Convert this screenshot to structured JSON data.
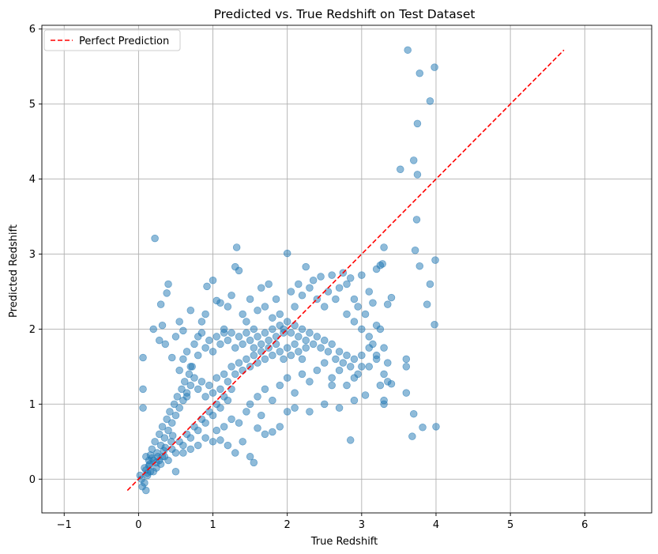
{
  "chart_data": {
    "type": "scatter",
    "title": "Predicted vs. True Redshift on Test Dataset",
    "xlabel": "True Redshift",
    "ylabel": "Predicted Redshift",
    "xlim": [
      -1.3,
      6.9
    ],
    "ylim": [
      -0.45,
      6.05
    ],
    "xticks": [
      -1,
      0,
      1,
      2,
      3,
      4,
      5,
      6
    ],
    "yticks": [
      0,
      1,
      2,
      3,
      4,
      5,
      6
    ],
    "grid": true,
    "legend": {
      "placement": "top-left",
      "entries": [
        "Perfect Prediction"
      ]
    },
    "colors": {
      "points": "#1f77b4",
      "reference_line": "#ff0000"
    },
    "reference_line": {
      "name": "Perfect Prediction",
      "x": [
        -0.15,
        5.72
      ],
      "y": [
        -0.15,
        5.72
      ]
    },
    "series": [
      {
        "points": [
          [
            0.02,
            0.05
          ],
          [
            0.05,
            -0.1
          ],
          [
            0.08,
            0.15
          ],
          [
            0.1,
            0.3
          ],
          [
            0.12,
            0.05
          ],
          [
            0.15,
            0.2
          ],
          [
            0.18,
            0.4
          ],
          [
            0.2,
            0.25
          ],
          [
            0.22,
            0.5
          ],
          [
            0.25,
            0.35
          ],
          [
            0.28,
            0.6
          ],
          [
            0.3,
            0.45
          ],
          [
            0.32,
            0.7
          ],
          [
            0.35,
            0.55
          ],
          [
            0.38,
            0.8
          ],
          [
            0.4,
            0.65
          ],
          [
            0.42,
            0.9
          ],
          [
            0.45,
            0.75
          ],
          [
            0.48,
            1.0
          ],
          [
            0.5,
            0.85
          ],
          [
            0.52,
            1.1
          ],
          [
            0.55,
            0.95
          ],
          [
            0.58,
            1.2
          ],
          [
            0.6,
            1.05
          ],
          [
            0.62,
            1.3
          ],
          [
            0.65,
            1.15
          ],
          [
            0.68,
            1.4
          ],
          [
            0.7,
            1.25
          ],
          [
            0.72,
            1.5
          ],
          [
            0.75,
            1.35
          ],
          [
            0.06,
            0.95
          ],
          [
            0.06,
            1.2
          ],
          [
            0.06,
            1.62
          ],
          [
            0.2,
            2.0
          ],
          [
            0.22,
            3.21
          ],
          [
            0.28,
            1.85
          ],
          [
            0.3,
            2.33
          ],
          [
            0.32,
            2.05
          ],
          [
            0.36,
            1.8
          ],
          [
            0.38,
            2.48
          ],
          [
            0.4,
            2.6
          ],
          [
            0.45,
            1.62
          ],
          [
            0.5,
            1.9
          ],
          [
            0.55,
            2.1
          ],
          [
            0.6,
            1.98
          ],
          [
            0.65,
            1.1
          ],
          [
            0.7,
            2.25
          ],
          [
            0.8,
            1.9
          ],
          [
            0.85,
            2.1
          ],
          [
            0.9,
            2.2
          ],
          [
            0.92,
            2.57
          ],
          [
            1.0,
            2.65
          ],
          [
            1.05,
            2.38
          ],
          [
            1.1,
            2.35
          ],
          [
            1.15,
            1.95
          ],
          [
            1.2,
            2.3
          ],
          [
            1.25,
            2.45
          ],
          [
            1.3,
            2.83
          ],
          [
            1.32,
            3.09
          ],
          [
            1.35,
            2.78
          ],
          [
            1.4,
            2.2
          ],
          [
            1.45,
            2.1
          ],
          [
            1.5,
            2.4
          ],
          [
            1.55,
            2.0
          ],
          [
            1.6,
            2.25
          ],
          [
            1.65,
            2.55
          ],
          [
            1.7,
            2.3
          ],
          [
            1.75,
            2.6
          ],
          [
            1.8,
            2.15
          ],
          [
            1.85,
            2.4
          ],
          [
            1.9,
            2.2
          ],
          [
            1.95,
            2.0
          ],
          [
            2.0,
            3.01
          ],
          [
            2.05,
            2.5
          ],
          [
            2.1,
            2.3
          ],
          [
            2.15,
            2.6
          ],
          [
            2.2,
            2.45
          ],
          [
            2.25,
            2.83
          ],
          [
            2.3,
            2.55
          ],
          [
            2.35,
            2.65
          ],
          [
            2.4,
            2.4
          ],
          [
            2.45,
            2.7
          ],
          [
            2.5,
            2.3
          ],
          [
            2.55,
            2.5
          ],
          [
            2.6,
            2.72
          ],
          [
            2.65,
            2.4
          ],
          [
            2.7,
            2.55
          ],
          [
            2.75,
            2.75
          ],
          [
            2.8,
            2.6
          ],
          [
            2.85,
            2.68
          ],
          [
            2.9,
            2.4
          ],
          [
            2.95,
            2.3
          ],
          [
            3.0,
            2.72
          ],
          [
            3.05,
            2.2
          ],
          [
            3.1,
            2.5
          ],
          [
            3.15,
            2.35
          ],
          [
            3.2,
            2.8
          ],
          [
            3.25,
            2.85
          ],
          [
            3.28,
            2.87
          ],
          [
            3.3,
            3.09
          ],
          [
            2.9,
            1.05
          ],
          [
            2.85,
            0.52
          ],
          [
            2.7,
            0.95
          ],
          [
            2.6,
            1.25
          ],
          [
            2.5,
            1.0
          ],
          [
            2.3,
            0.9
          ],
          [
            2.1,
            0.95
          ],
          [
            2.0,
            0.9
          ],
          [
            1.9,
            0.7
          ],
          [
            1.8,
            0.63
          ],
          [
            1.7,
            0.6
          ],
          [
            1.6,
            0.68
          ],
          [
            1.5,
            0.3
          ],
          [
            1.55,
            0.22
          ],
          [
            1.4,
            0.5
          ],
          [
            1.3,
            0.35
          ],
          [
            1.2,
            0.45
          ],
          [
            1.1,
            0.52
          ],
          [
            1.0,
            0.5
          ],
          [
            0.8,
            0.45
          ],
          [
            0.5,
            0.1
          ],
          [
            0.6,
            0.35
          ],
          [
            0.7,
            0.4
          ],
          [
            0.9,
            0.55
          ],
          [
            1.05,
            0.65
          ],
          [
            1.15,
            0.7
          ],
          [
            1.25,
            0.8
          ],
          [
            1.35,
            0.75
          ],
          [
            1.45,
            0.9
          ],
          [
            1.65,
            0.85
          ],
          [
            3.3,
            1.05
          ],
          [
            3.3,
            1.0
          ],
          [
            3.25,
            1.25
          ],
          [
            3.35,
            1.3
          ],
          [
            3.4,
            1.27
          ],
          [
            3.3,
            1.4
          ],
          [
            3.35,
            1.55
          ],
          [
            3.2,
            1.6
          ],
          [
            3.1,
            1.5
          ],
          [
            3.05,
            1.12
          ],
          [
            3.6,
            1.15
          ],
          [
            3.6,
            1.5
          ],
          [
            3.6,
            1.6
          ],
          [
            3.7,
            0.87
          ],
          [
            3.68,
            0.57
          ],
          [
            3.82,
            0.69
          ],
          [
            4.0,
            0.7
          ],
          [
            3.88,
            2.33
          ],
          [
            3.92,
            2.6
          ],
          [
            3.98,
            2.06
          ],
          [
            3.99,
            2.92
          ],
          [
            3.78,
            2.84
          ],
          [
            3.72,
            3.05
          ],
          [
            3.74,
            3.46
          ],
          [
            3.75,
            4.06
          ],
          [
            3.7,
            4.25
          ],
          [
            3.52,
            4.13
          ],
          [
            3.75,
            4.74
          ],
          [
            3.92,
            5.04
          ],
          [
            3.78,
            5.41
          ],
          [
            3.98,
            5.49
          ],
          [
            3.62,
            5.72
          ],
          [
            3.4,
            2.42
          ],
          [
            3.35,
            2.33
          ],
          [
            3.25,
            2.0
          ],
          [
            3.2,
            1.65
          ],
          [
            3.15,
            1.8
          ],
          [
            3.1,
            1.9
          ],
          [
            3.3,
            1.75
          ],
          [
            3.2,
            2.05
          ],
          [
            0.55,
            1.45
          ],
          [
            0.6,
            1.6
          ],
          [
            0.65,
            1.7
          ],
          [
            0.7,
            1.5
          ],
          [
            0.75,
            1.8
          ],
          [
            0.8,
            1.65
          ],
          [
            0.85,
            1.95
          ],
          [
            0.9,
            1.75
          ],
          [
            0.95,
            1.85
          ],
          [
            1.0,
            1.7
          ],
          [
            1.05,
            1.9
          ],
          [
            1.1,
            1.8
          ],
          [
            1.15,
            2.0
          ],
          [
            1.2,
            1.85
          ],
          [
            1.25,
            1.95
          ],
          [
            1.3,
            1.75
          ],
          [
            1.35,
            1.9
          ],
          [
            1.4,
            1.8
          ],
          [
            1.45,
            1.95
          ],
          [
            1.5,
            1.85
          ],
          [
            1.55,
            1.75
          ],
          [
            1.6,
            1.9
          ],
          [
            1.65,
            1.8
          ],
          [
            1.7,
            1.95
          ],
          [
            1.75,
            1.85
          ],
          [
            1.8,
            2.0
          ],
          [
            1.85,
            1.9
          ],
          [
            1.9,
            2.05
          ],
          [
            1.95,
            1.95
          ],
          [
            2.0,
            2.1
          ],
          [
            2.05,
            1.95
          ],
          [
            2.1,
            2.05
          ],
          [
            2.15,
            1.9
          ],
          [
            2.2,
            2.0
          ],
          [
            2.25,
            1.85
          ],
          [
            2.3,
            1.95
          ],
          [
            2.35,
            1.8
          ],
          [
            2.4,
            1.9
          ],
          [
            2.45,
            1.75
          ],
          [
            2.5,
            1.85
          ],
          [
            2.55,
            1.7
          ],
          [
            2.6,
            1.8
          ],
          [
            2.65,
            1.6
          ],
          [
            2.7,
            1.7
          ],
          [
            2.75,
            1.55
          ],
          [
            2.8,
            1.65
          ],
          [
            2.85,
            1.5
          ],
          [
            2.9,
            1.6
          ],
          [
            2.95,
            1.4
          ],
          [
            3.0,
            1.5
          ],
          [
            0.8,
            1.2
          ],
          [
            0.85,
            1.3
          ],
          [
            0.9,
            1.1
          ],
          [
            0.95,
            1.25
          ],
          [
            1.0,
            1.15
          ],
          [
            1.05,
            1.35
          ],
          [
            1.1,
            1.2
          ],
          [
            1.15,
            1.4
          ],
          [
            1.2,
            1.3
          ],
          [
            1.25,
            1.5
          ],
          [
            1.3,
            1.4
          ],
          [
            1.35,
            1.55
          ],
          [
            1.4,
            1.45
          ],
          [
            1.45,
            1.6
          ],
          [
            1.5,
            1.5
          ],
          [
            1.55,
            1.65
          ],
          [
            1.6,
            1.55
          ],
          [
            1.65,
            1.7
          ],
          [
            1.7,
            1.6
          ],
          [
            1.75,
            1.75
          ],
          [
            1.8,
            1.65
          ],
          [
            1.85,
            1.8
          ],
          [
            1.9,
            1.7
          ],
          [
            1.95,
            1.6
          ],
          [
            2.0,
            1.75
          ],
          [
            2.05,
            1.65
          ],
          [
            2.1,
            1.8
          ],
          [
            2.15,
            1.7
          ],
          [
            2.2,
            1.6
          ],
          [
            2.25,
            1.75
          ],
          [
            0.3,
            0.2
          ],
          [
            0.35,
            0.3
          ],
          [
            0.4,
            0.25
          ],
          [
            0.45,
            0.4
          ],
          [
            0.5,
            0.35
          ],
          [
            0.55,
            0.5
          ],
          [
            0.6,
            0.45
          ],
          [
            0.65,
            0.6
          ],
          [
            0.7,
            0.55
          ],
          [
            0.75,
            0.7
          ],
          [
            0.8,
            0.65
          ],
          [
            0.85,
            0.8
          ],
          [
            0.9,
            0.75
          ],
          [
            0.95,
            0.9
          ],
          [
            1.0,
            0.85
          ],
          [
            1.05,
            1.0
          ],
          [
            1.1,
            0.95
          ],
          [
            1.15,
            1.1
          ],
          [
            1.2,
            1.05
          ],
          [
            1.25,
            1.2
          ],
          [
            0.1,
            0.12
          ],
          [
            0.14,
            0.18
          ],
          [
            0.16,
            0.1
          ],
          [
            0.18,
            0.28
          ],
          [
            0.24,
            0.22
          ],
          [
            0.26,
            0.3
          ],
          [
            0.34,
            0.38
          ],
          [
            0.36,
            0.42
          ],
          [
            0.44,
            0.5
          ],
          [
            0.46,
            0.58
          ],
          [
            0.04,
            0.0
          ],
          [
            0.08,
            -0.05
          ],
          [
            0.1,
            -0.15
          ],
          [
            0.12,
            0.08
          ],
          [
            0.14,
            0.25
          ],
          [
            0.16,
            0.32
          ],
          [
            0.2,
            0.1
          ],
          [
            0.24,
            0.15
          ],
          [
            0.28,
            0.25
          ],
          [
            0.32,
            0.3
          ],
          [
            1.5,
            1.0
          ],
          [
            1.6,
            1.1
          ],
          [
            1.7,
            1.2
          ],
          [
            1.8,
            1.05
          ],
          [
            1.9,
            1.25
          ],
          [
            2.0,
            1.35
          ],
          [
            2.1,
            1.15
          ],
          [
            2.2,
            1.4
          ],
          [
            2.3,
            1.3
          ],
          [
            2.4,
            1.45
          ],
          [
            2.5,
            1.55
          ],
          [
            2.6,
            1.35
          ],
          [
            2.7,
            1.45
          ],
          [
            2.8,
            1.25
          ],
          [
            2.9,
            1.35
          ],
          [
            3.0,
            1.65
          ],
          [
            3.1,
            1.75
          ],
          [
            3.0,
            2.0
          ],
          [
            2.9,
            2.1
          ],
          [
            2.8,
            2.2
          ]
        ]
      }
    ]
  }
}
